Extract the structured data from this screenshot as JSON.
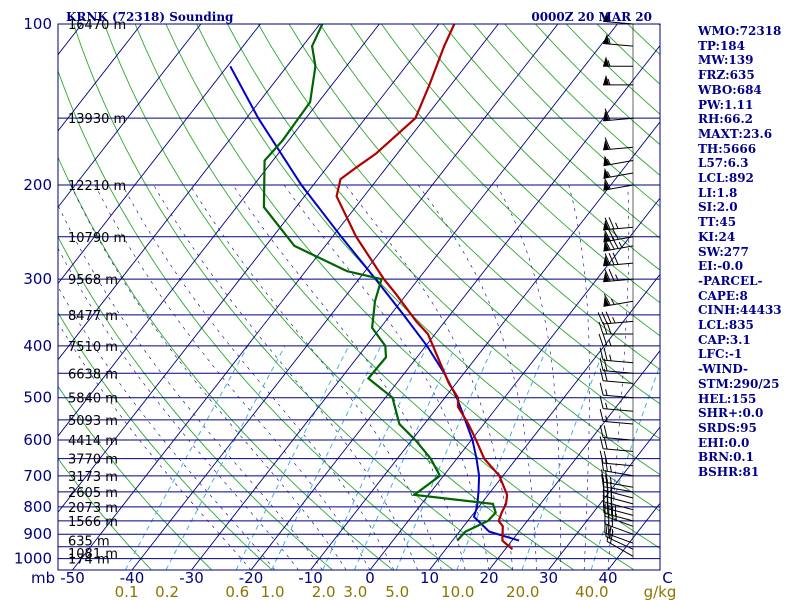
{
  "header": {
    "station": "KRNK (72318) Sounding",
    "time": "0000Z 20 MAR 20"
  },
  "indices": [
    "WMO:72318",
    "TP:184",
    "MW:139",
    "FRZ:635",
    "WBO:684",
    "PW:1.11",
    "RH:66.2",
    "MAXT:23.6",
    "TH:5666",
    "L57:6.3",
    "LCL:892",
    "LI:1.8",
    "SI:2.0",
    "TT:45",
    "KI:24",
    "SW:277",
    "EI:-0.0",
    "-PARCEL-",
    "CAPE:8",
    "CINH:44433",
    "LCL:835",
    "CAP:3.1",
    "LFC:-1",
    "-WIND-",
    "STM:290/25",
    "HEL:155",
    "SHR+:0.0",
    "SRDS:95",
    "EHI:0.0",
    "BRN:0.1",
    "BSHR:81"
  ],
  "colors": {
    "isobar": "#000080",
    "isotherm": "#000080",
    "dry_adiabat": "#2ea82e",
    "moist_adiabat": "#000080",
    "mixing_ratio": "#4ab0d8",
    "temperature": "#b00000",
    "dewpoint": "#006400",
    "parcel": "#0000c8",
    "wind_barb": "#000000"
  },
  "chart_data": {
    "type": "skew-t",
    "title": "KRNK (72318) Sounding",
    "time": "0000Z 20 MAR 20",
    "ylabel": "mb",
    "xlabel": "C",
    "mixing_ratio_unit": "g/kg",
    "pressure_range": [
      1000,
      100
    ],
    "pressure_ticks": [
      100,
      200,
      300,
      400,
      500,
      600,
      700,
      800,
      900,
      1000
    ],
    "temperature_ticks": [
      -50,
      -40,
      -30,
      -20,
      -10,
      0,
      10,
      20,
      30,
      40,
      50
    ],
    "temperature_tick_labels": [
      "-50",
      "-40",
      "-30",
      "-20",
      "-10",
      "0",
      "10",
      "20",
      "30",
      "40",
      "C"
    ],
    "mixing_ratio_labels": [
      "0.1",
      "0.2",
      "0.6",
      "1.0",
      "2.0",
      "3.0",
      "5.0",
      "10.0",
      "20.0",
      "40.0"
    ],
    "mixing_ratio_values": [
      0.1,
      0.2,
      0.6,
      1.0,
      2.0,
      3.0,
      5.0,
      10.0,
      20.0,
      40.0
    ],
    "height_labels": [
      {
        "p": 1000,
        "label": "174 m"
      },
      {
        "p": 925,
        "label": "635 m"
      },
      {
        "p": 975,
        "label": "1081 m"
      },
      {
        "p": 850,
        "label": "1566 m"
      },
      {
        "p": 800,
        "label": "2073 m"
      },
      {
        "p": 750,
        "label": "2605 m"
      },
      {
        "p": 700,
        "label": "3173 m"
      },
      {
        "p": 650,
        "label": "3770 m"
      },
      {
        "p": 600,
        "label": "4414 m"
      },
      {
        "p": 550,
        "label": "5093 m"
      },
      {
        "p": 500,
        "label": "5840 m"
      },
      {
        "p": 450,
        "label": "6638 m"
      },
      {
        "p": 400,
        "label": "7510 m"
      },
      {
        "p": 350,
        "label": "8477 m"
      },
      {
        "p": 300,
        "label": "9568 m"
      },
      {
        "p": 250,
        "label": "10790 m"
      },
      {
        "p": 200,
        "label": "12210 m"
      },
      {
        "p": 150,
        "label": "13930 m"
      },
      {
        "p": 100,
        "label": "16470 m"
      }
    ],
    "temperature": [
      {
        "p": 960,
        "t": 21.2
      },
      {
        "p": 925,
        "t": 18.4
      },
      {
        "p": 870,
        "t": 16.6
      },
      {
        "p": 850,
        "t": 15.2
      },
      {
        "p": 820,
        "t": 14.6
      },
      {
        "p": 790,
        "t": 14.2
      },
      {
        "p": 760,
        "t": 13.2
      },
      {
        "p": 700,
        "t": 9.4
      },
      {
        "p": 650,
        "t": 4.6
      },
      {
        "p": 600,
        "t": 0.8
      },
      {
        "p": 560,
        "t": -2.6
      },
      {
        "p": 520,
        "t": -6.6
      },
      {
        "p": 500,
        "t": -7.8
      },
      {
        "p": 470,
        "t": -11.2
      },
      {
        "p": 430,
        "t": -15.4
      },
      {
        "p": 380,
        "t": -21.2
      },
      {
        "p": 360,
        "t": -24.8
      },
      {
        "p": 320,
        "t": -31.8
      },
      {
        "p": 300,
        "t": -35.8
      },
      {
        "p": 250,
        "t": -46.0
      },
      {
        "p": 210,
        "t": -54.6
      },
      {
        "p": 195,
        "t": -56.2
      },
      {
        "p": 185,
        "t": -55.0
      },
      {
        "p": 175,
        "t": -53.6
      },
      {
        "p": 150,
        "t": -51.6
      },
      {
        "p": 130,
        "t": -53.6
      },
      {
        "p": 110,
        "t": -56.2
      },
      {
        "p": 100,
        "t": -57.4
      }
    ],
    "dewpoint": [
      {
        "p": 925,
        "t": 10.8
      },
      {
        "p": 890,
        "t": 11.0
      },
      {
        "p": 850,
        "t": 13.4
      },
      {
        "p": 820,
        "t": 13.6
      },
      {
        "p": 790,
        "t": 12.0
      },
      {
        "p": 760,
        "t": -2.4
      },
      {
        "p": 700,
        "t": -0.6
      },
      {
        "p": 650,
        "t": -4.4
      },
      {
        "p": 600,
        "t": -9.4
      },
      {
        "p": 560,
        "t": -14.2
      },
      {
        "p": 500,
        "t": -18.8
      },
      {
        "p": 460,
        "t": -25.4
      },
      {
        "p": 420,
        "t": -25.2
      },
      {
        "p": 400,
        "t": -26.8
      },
      {
        "p": 370,
        "t": -31.4
      },
      {
        "p": 330,
        "t": -34.4
      },
      {
        "p": 300,
        "t": -36.2
      },
      {
        "p": 290,
        "t": -43.0
      },
      {
        "p": 260,
        "t": -55.2
      },
      {
        "p": 220,
        "t": -65.4
      },
      {
        "p": 180,
        "t": -71.4
      },
      {
        "p": 165,
        "t": -71.0
      },
      {
        "p": 140,
        "t": -71.4
      },
      {
        "p": 120,
        "t": -75.2
      },
      {
        "p": 110,
        "t": -78.4
      },
      {
        "p": 100,
        "t": -79.6
      }
    ],
    "parcel": [
      {
        "p": 925,
        "t": 21.2
      },
      {
        "p": 890,
        "t": 15.0
      },
      {
        "p": 835,
        "t": 10.5
      },
      {
        "p": 800,
        "t": 9.7
      },
      {
        "p": 750,
        "t": 8.0
      },
      {
        "p": 700,
        "t": 6.0
      },
      {
        "p": 650,
        "t": 3.3
      },
      {
        "p": 600,
        "t": 0.2
      },
      {
        "p": 550,
        "t": -3.7
      },
      {
        "p": 500,
        "t": -8.0
      },
      {
        "p": 450,
        "t": -13.3
      },
      {
        "p": 400,
        "t": -19.8
      },
      {
        "p": 350,
        "t": -27.8
      },
      {
        "p": 300,
        "t": -37.2
      },
      {
        "p": 250,
        "t": -48.5
      },
      {
        "p": 200,
        "t": -62.0
      },
      {
        "p": 150,
        "t": -78.0
      },
      {
        "p": 120,
        "t": -89.5
      }
    ],
    "winds": [
      {
        "p": 990,
        "dir": 300,
        "spd": 20
      },
      {
        "p": 960,
        "dir": 295,
        "spd": 20
      },
      {
        "p": 935,
        "dir": 290,
        "spd": 25
      },
      {
        "p": 900,
        "dir": 290,
        "spd": 30
      },
      {
        "p": 870,
        "dir": 290,
        "spd": 35
      },
      {
        "p": 850,
        "dir": 285,
        "spd": 35
      },
      {
        "p": 830,
        "dir": 285,
        "spd": 35
      },
      {
        "p": 810,
        "dir": 285,
        "spd": 30
      },
      {
        "p": 790,
        "dir": 285,
        "spd": 30
      },
      {
        "p": 770,
        "dir": 285,
        "spd": 25
      },
      {
        "p": 750,
        "dir": 280,
        "spd": 25
      },
      {
        "p": 735,
        "dir": 280,
        "spd": 25
      },
      {
        "p": 700,
        "dir": 280,
        "spd": 25
      },
      {
        "p": 670,
        "dir": 275,
        "spd": 20
      },
      {
        "p": 630,
        "dir": 275,
        "spd": 20
      },
      {
        "p": 600,
        "dir": 275,
        "spd": 20
      },
      {
        "p": 560,
        "dir": 275,
        "spd": 15
      },
      {
        "p": 530,
        "dir": 275,
        "spd": 15
      },
      {
        "p": 500,
        "dir": 275,
        "spd": 15
      },
      {
        "p": 470,
        "dir": 275,
        "spd": 20
      },
      {
        "p": 450,
        "dir": 275,
        "spd": 20
      },
      {
        "p": 430,
        "dir": 275,
        "spd": 25
      },
      {
        "p": 400,
        "dir": 270,
        "spd": 25
      },
      {
        "p": 380,
        "dir": 270,
        "spd": 30
      },
      {
        "p": 360,
        "dir": 265,
        "spd": 35
      },
      {
        "p": 330,
        "dir": 260,
        "spd": 65
      },
      {
        "p": 300,
        "dir": 265,
        "spd": 75
      },
      {
        "p": 280,
        "dir": 265,
        "spd": 80
      },
      {
        "p": 260,
        "dir": 260,
        "spd": 85
      },
      {
        "p": 250,
        "dir": 260,
        "spd": 80
      },
      {
        "p": 240,
        "dir": 265,
        "spd": 75
      },
      {
        "p": 200,
        "dir": 260,
        "spd": 60
      },
      {
        "p": 190,
        "dir": 260,
        "spd": 55
      },
      {
        "p": 180,
        "dir": 260,
        "spd": 55
      },
      {
        "p": 170,
        "dir": 265,
        "spd": 60
      },
      {
        "p": 150,
        "dir": 265,
        "spd": 60
      },
      {
        "p": 130,
        "dir": 270,
        "spd": 55
      },
      {
        "p": 120,
        "dir": 270,
        "spd": 55
      },
      {
        "p": 110,
        "dir": 275,
        "spd": 55
      },
      {
        "p": 100,
        "dir": 275,
        "spd": 55
      }
    ]
  }
}
